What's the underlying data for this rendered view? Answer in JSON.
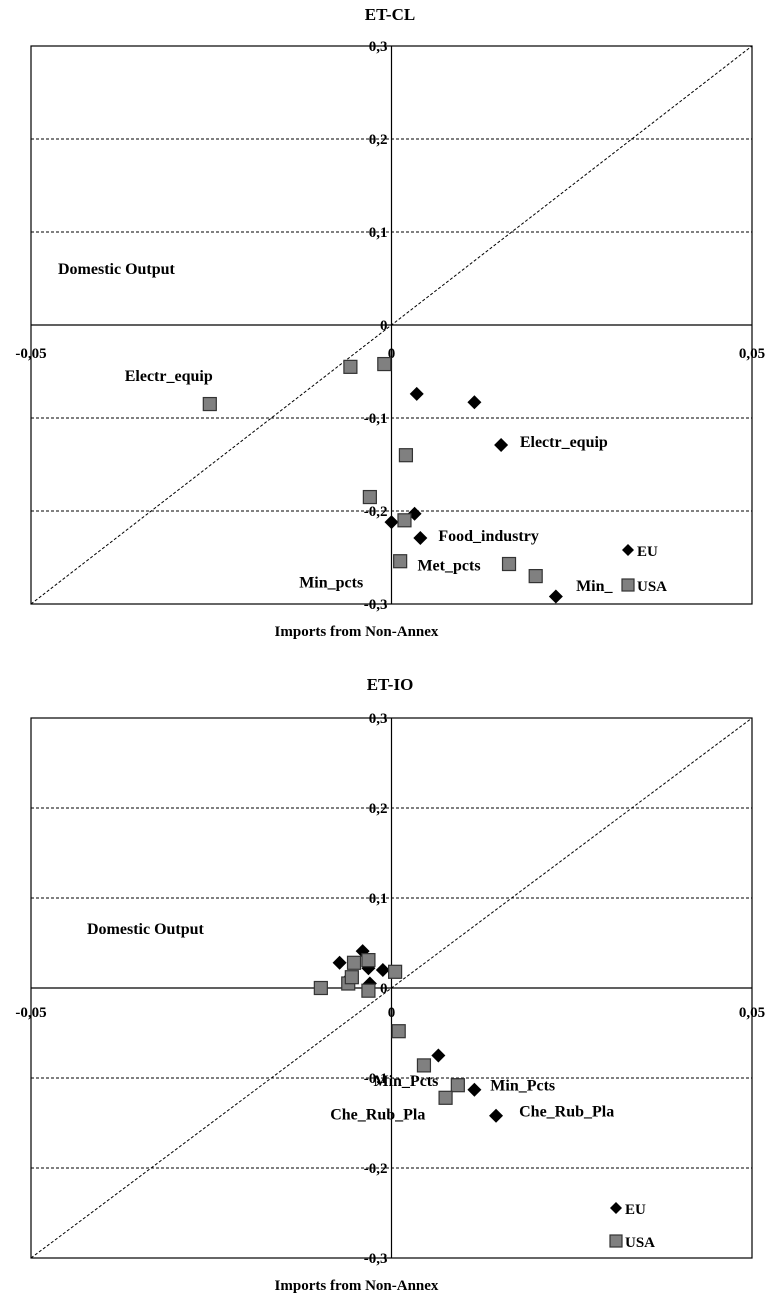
{
  "charts": [
    {
      "type": "scatter",
      "title": "ET-CL",
      "xlabel": "Imports from Non-Annex",
      "ylabel": "",
      "region_label": "Domestic Output",
      "xlim": [
        -0.05,
        0.05
      ],
      "ylim": [
        -0.3,
        0.3
      ],
      "x_ticks": [
        {
          "value": -0.05,
          "label": "-0,05"
        },
        {
          "value": 0,
          "label": "0"
        },
        {
          "value": 0.05,
          "label": "0,05"
        }
      ],
      "y_ticks": [
        {
          "value": 0.3,
          "label": "0,3"
        },
        {
          "value": 0.2,
          "label": "0,2"
        },
        {
          "value": 0.1,
          "label": "0,1"
        },
        {
          "value": 0,
          "label": "0"
        },
        {
          "value": -0.1,
          "label": "-0,1"
        },
        {
          "value": -0.2,
          "label": "-0,2"
        },
        {
          "value": -0.3,
          "label": "-0,3"
        }
      ],
      "gridlines_y": [
        0.2,
        0.1,
        -0.1,
        -0.2
      ],
      "diagonal": true,
      "series": [
        {
          "name": "EU",
          "marker": "diamond",
          "color": "#000000",
          "points": [
            [
              0.0035,
              -0.074
            ],
            [
              0.0115,
              -0.083
            ],
            [
              0.0152,
              -0.129
            ],
            [
              0.0032,
              -0.203
            ],
            [
              0.0,
              -0.212
            ],
            [
              0.004,
              -0.229
            ],
            [
              0.0228,
              -0.292
            ]
          ]
        },
        {
          "name": "USA",
          "marker": "square",
          "color": "#808080",
          "points": [
            [
              -0.0252,
              -0.085
            ],
            [
              -0.0057,
              -0.045
            ],
            [
              -0.001,
              -0.042
            ],
            [
              0.002,
              -0.14
            ],
            [
              -0.003,
              -0.185
            ],
            [
              0.0018,
              -0.21
            ],
            [
              0.0012,
              -0.254
            ],
            [
              0.0163,
              -0.257
            ],
            [
              0.02,
              -0.27
            ]
          ]
        }
      ],
      "annotations": [
        {
          "text": "Electr_equip",
          "x": -0.037,
          "y": -0.06
        },
        {
          "text": "Electr_equip",
          "x": 0.0178,
          "y": -0.131
        },
        {
          "text": "Food_industry",
          "x": 0.0065,
          "y": -0.232
        },
        {
          "text": "Met_pcts",
          "x": 0.0036,
          "y": -0.264
        },
        {
          "text": "Min_pcts",
          "x": -0.0128,
          "y": -0.282
        },
        {
          "text": "Min_",
          "x": 0.0256,
          "y": -0.286
        }
      ],
      "legend": [
        {
          "label": "EU",
          "marker": "diamond"
        },
        {
          "label": "USA",
          "marker": "square"
        }
      ],
      "legend_position": "bottom-right"
    },
    {
      "type": "scatter",
      "title": "ET-IO",
      "xlabel": "Imports from Non-Annex",
      "ylabel": "",
      "region_label": "Domestic Output",
      "xlim": [
        -0.05,
        0.05
      ],
      "ylim": [
        -0.3,
        0.3
      ],
      "x_ticks": [
        {
          "value": -0.05,
          "label": "-0,05"
        },
        {
          "value": 0,
          "label": "0"
        },
        {
          "value": 0.05,
          "label": "0,05"
        }
      ],
      "y_ticks": [
        {
          "value": 0.3,
          "label": "0,3"
        },
        {
          "value": 0.2,
          "label": "0,2"
        },
        {
          "value": 0.1,
          "label": "0,1"
        },
        {
          "value": 0,
          "label": "0"
        },
        {
          "value": -0.1,
          "label": "-0,1"
        },
        {
          "value": -0.2,
          "label": "-0,2"
        },
        {
          "value": -0.3,
          "label": "-0,3"
        }
      ],
      "gridlines_y": [
        0.2,
        0.1,
        -0.1,
        -0.2
      ],
      "diagonal": true,
      "series": [
        {
          "name": "EU",
          "marker": "diamond",
          "color": "#000000",
          "points": [
            [
              -0.0072,
              0.028
            ],
            [
              -0.004,
              0.041
            ],
            [
              -0.0032,
              0.022
            ],
            [
              -0.0012,
              0.02
            ],
            [
              -0.003,
              0.005
            ],
            [
              -0.006,
              0.01
            ],
            [
              -0.0098,
              0.0
            ],
            [
              0.0065,
              -0.075
            ],
            [
              0.0115,
              -0.113
            ],
            [
              0.0145,
              -0.142
            ]
          ]
        },
        {
          "name": "USA",
          "marker": "square",
          "color": "#808080",
          "points": [
            [
              -0.0098,
              0.0
            ],
            [
              -0.0052,
              0.028
            ],
            [
              -0.0032,
              0.031
            ],
            [
              -0.006,
              0.005
            ],
            [
              -0.0055,
              0.012
            ],
            [
              -0.0032,
              -0.003
            ],
            [
              0.0005,
              0.018
            ],
            [
              0.001,
              -0.048
            ],
            [
              0.0045,
              -0.086
            ],
            [
              0.0092,
              -0.108
            ],
            [
              0.0075,
              -0.122
            ]
          ]
        }
      ],
      "annotations": [
        {
          "text": "Domestic Output",
          "x": -0.0425,
          "y": 0.035,
          "role": "region"
        },
        {
          "text": "Min_Pcts",
          "x": -0.0025,
          "y": -0.109
        },
        {
          "text": "Min_Pcts",
          "x": 0.0137,
          "y": -0.114
        },
        {
          "text": "Che_Rub_Pla",
          "x": -0.0085,
          "y": -0.146
        },
        {
          "text": "Che_Rub_Pla",
          "x": 0.0177,
          "y": -0.143
        }
      ],
      "legend": [
        {
          "label": "EU",
          "marker": "diamond"
        },
        {
          "label": "USA",
          "marker": "square"
        }
      ],
      "legend_position": "bottom-right"
    }
  ],
  "chart_data": [
    {
      "type": "scatter",
      "title": "ET-CL",
      "xlabel": "Imports from Non-Annex",
      "ylabel": "",
      "xlim": [
        -0.05,
        0.05
      ],
      "ylim": [
        -0.3,
        0.3
      ],
      "grid": "horizontal dashed",
      "legend_position": "bottom-right",
      "series": [
        {
          "name": "EU",
          "x": [
            0.0035,
            0.0115,
            0.0152,
            0.0032,
            0.0,
            0.004,
            0.0228
          ],
          "y": [
            -0.074,
            -0.083,
            -0.129,
            -0.203,
            -0.212,
            -0.229,
            -0.292
          ]
        },
        {
          "name": "USA",
          "x": [
            -0.0252,
            -0.0057,
            -0.001,
            0.002,
            -0.003,
            0.0018,
            0.0012,
            0.0163,
            0.02
          ],
          "y": [
            -0.085,
            -0.045,
            -0.042,
            -0.14,
            -0.185,
            -0.21,
            -0.254,
            -0.257,
            -0.27
          ]
        }
      ]
    },
    {
      "type": "scatter",
      "title": "ET-IO",
      "xlabel": "Imports from Non-Annex",
      "ylabel": "",
      "xlim": [
        -0.05,
        0.05
      ],
      "ylim": [
        -0.3,
        0.3
      ],
      "grid": "horizontal dashed",
      "legend_position": "bottom-right",
      "series": [
        {
          "name": "EU",
          "x": [
            -0.0072,
            -0.004,
            -0.0032,
            -0.0012,
            -0.003,
            -0.006,
            -0.0098,
            0.0065,
            0.0115,
            0.0145
          ],
          "y": [
            0.028,
            0.041,
            0.022,
            0.02,
            0.005,
            0.01,
            0.0,
            -0.075,
            -0.113,
            -0.142
          ]
        },
        {
          "name": "USA",
          "x": [
            -0.0098,
            -0.0052,
            -0.0032,
            -0.006,
            -0.0055,
            -0.0032,
            0.0005,
            0.001,
            0.0045,
            0.0092,
            0.0075
          ],
          "y": [
            0.0,
            0.028,
            0.031,
            0.005,
            0.012,
            -0.003,
            0.018,
            -0.048,
            -0.086,
            -0.108,
            -0.122
          ]
        }
      ]
    }
  ]
}
